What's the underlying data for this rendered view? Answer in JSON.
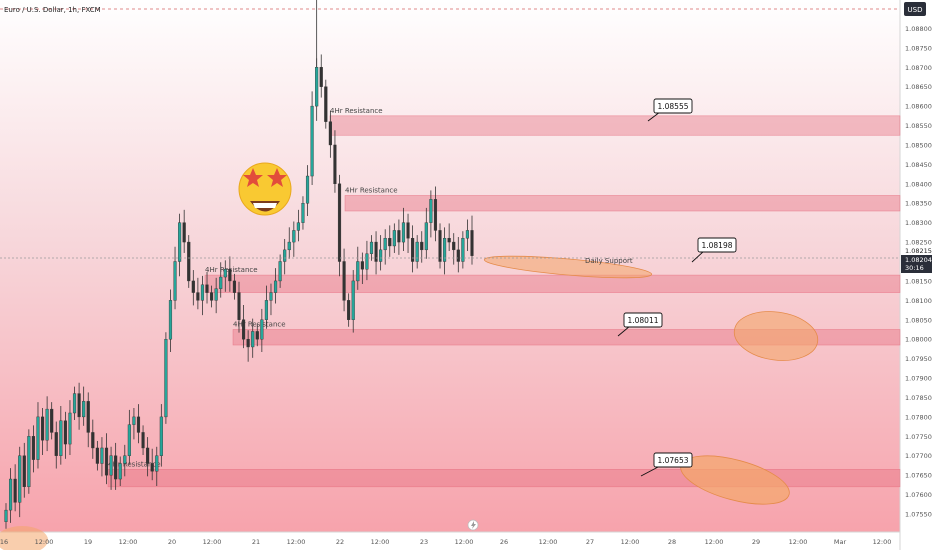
{
  "header": {
    "symbol_label": "Euro / U.S. Dollar, 1h, FXCM",
    "currency": "USD"
  },
  "price_scale": {
    "ticks": [
      "1.08800",
      "1.08750",
      "1.08700",
      "1.08650",
      "1.08600",
      "1.08550",
      "1.08500",
      "1.08450",
      "1.08400",
      "1.08350",
      "1.08300",
      "1.08250",
      "1.08200",
      "1.08150",
      "1.08100",
      "1.08050",
      "1.08000",
      "1.07950",
      "1.07900",
      "1.07850",
      "1.07800",
      "1.07750",
      "1.07700",
      "1.07650",
      "1.07600",
      "1.07550"
    ],
    "price_tag_1": "1.08215",
    "price_tag_2": "1.08204",
    "countdown": "30:16"
  },
  "time_axis": {
    "labels": [
      "16",
      "12:00",
      "19",
      "12:00",
      "20",
      "12:00",
      "21",
      "12:00",
      "22",
      "12:00",
      "23",
      "12:00",
      "26",
      "12:00",
      "27",
      "12:00",
      "28",
      "12:00",
      "29",
      "12:00",
      "Mar",
      "12:00"
    ]
  },
  "zones": [
    {
      "label": "4Hr Resistance",
      "top": 1.08575,
      "bottom": 1.08525
    },
    {
      "label": "4Hr Resistance",
      "top": 1.0837,
      "bottom": 1.0833
    },
    {
      "label": "4Hr Resistance",
      "top": 1.08165,
      "bottom": 1.0812
    },
    {
      "label": "4Hr Resistance",
      "top": 1.08025,
      "bottom": 1.07985
    },
    {
      "label": "4Hr Resistance",
      "top": 1.07665,
      "bottom": 1.0762
    }
  ],
  "callouts": [
    "1.08555",
    "1.08198",
    "1.08011",
    "1.07653"
  ],
  "annotation_daily": "Daily Support",
  "colors": {
    "up": "#26a69a",
    "down": "#333333",
    "zone": "#e56b7e",
    "ellipse": "#f4a66a",
    "bg_top": "#ffffff",
    "bg_bottom": "#f7a3ac"
  },
  "chart_data": {
    "type": "candlestick",
    "title": "Euro / U.S. Dollar, 1h, FXCM",
    "ylim": [
      1.075,
      1.0885
    ],
    "series": [
      {
        "name": "EURUSD",
        "values": [
          1.0756,
          1.0764,
          1.0758,
          1.077,
          1.0762,
          1.0775,
          1.0769,
          1.078,
          1.0774,
          1.0782,
          1.0776,
          1.077,
          1.0779,
          1.0773,
          1.0781,
          1.0786,
          1.078,
          1.0784,
          1.0776,
          1.0772,
          1.0768,
          1.0772,
          1.0765,
          1.077,
          1.0764,
          1.0768,
          1.077,
          1.0778,
          1.078,
          1.0776,
          1.0772,
          1.0768,
          1.0766,
          1.077,
          1.078,
          1.08,
          1.081,
          1.082,
          1.083,
          1.0825,
          1.0815,
          1.0812,
          1.081,
          1.0814,
          1.0812,
          1.081,
          1.0813,
          1.0816,
          1.0818,
          1.0815,
          1.0812,
          1.0805,
          1.08,
          1.0798,
          1.0802,
          1.08,
          1.0805,
          1.081,
          1.0812,
          1.0815,
          1.082,
          1.0823,
          1.0825,
          1.0828,
          1.083,
          1.0835,
          1.0842,
          1.086,
          1.087,
          1.0865,
          1.0856,
          1.085,
          1.084,
          1.082,
          1.081,
          1.0805,
          1.0815,
          1.082,
          1.0818,
          1.0822,
          1.0825,
          1.082,
          1.0823,
          1.0826,
          1.0824,
          1.0828,
          1.0825,
          1.083,
          1.0826,
          1.082,
          1.0825,
          1.0823,
          1.083,
          1.0836,
          1.0828,
          1.082,
          1.0826,
          1.0825,
          1.0823,
          1.082,
          1.0826,
          1.0828,
          1.08215
        ]
      }
    ]
  }
}
